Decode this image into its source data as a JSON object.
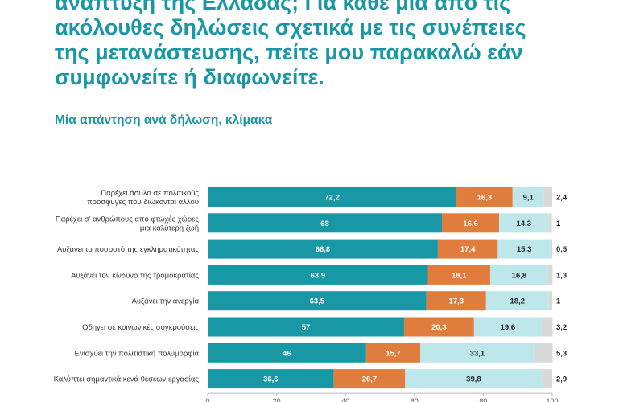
{
  "title_lines": [
    "ανάπτυξη της Ελλάδας; Για κάθε μία από τις",
    "ακόλουθες δηλώσεις σχετικά με τις συνέπειες",
    "της μετανάστευσης, πείτε μου παρακαλώ εάν",
    "συμφωνείτε ή διαφωνείτε."
  ],
  "subtitle": "Μία απάντηση ανά δήλωση, κλίμακα",
  "colors": {
    "title": "#1a97a4",
    "series": [
      "#1798a4",
      "#e07d3c",
      "#bde7eb",
      "#d9d9d9"
    ],
    "label_text": [
      "#ffffff",
      "#ffffff",
      "#222222",
      "#222222"
    ]
  },
  "chart_data": {
    "type": "bar",
    "orientation": "horizontal",
    "stacked": true,
    "categories": [
      [
        "Παρέχει άσυλο σε πολιτικούς",
        "πρόσφυγες που διώκονται αλλού"
      ],
      [
        "Παρέχει σ’ ανθρώπους από φτωχές χώρες",
        "μια καλύτερη ζωή"
      ],
      [
        "Αυξάνει το ποσοστό της εγκληματικότητας"
      ],
      [
        "Αυξάνει τον κίνδυνο της τρομοκρατίας"
      ],
      [
        "Αυξάνει την ανεργία"
      ],
      [
        "Οδηγεί σε κοινωνικές συγκρούσεις"
      ],
      [
        "Ενισχύει την πολιτιστική πολυμορφία"
      ],
      [
        "Καλύπτει σημαντικά κενά θέσεων εργασίας"
      ]
    ],
    "series": [
      {
        "values": [
          72.2,
          68,
          66.8,
          63.9,
          63.5,
          57,
          46,
          36.6
        ]
      },
      {
        "values": [
          16.3,
          16.6,
          17.4,
          18.1,
          17.3,
          20.3,
          15.7,
          20.7
        ]
      },
      {
        "values": [
          9.1,
          14.3,
          15.3,
          16.8,
          18.2,
          19.6,
          33.1,
          39.8
        ]
      },
      {
        "values": [
          2.4,
          1,
          0.5,
          1.3,
          1,
          3.2,
          5.3,
          2.9
        ]
      }
    ],
    "value_labels": [
      [
        "72,2",
        "16,3",
        "9,1",
        "2,4"
      ],
      [
        "68",
        "16,6",
        "14,3",
        "1"
      ],
      [
        "66,8",
        "17,4",
        "15,3",
        "0,5"
      ],
      [
        "63,9",
        "18,1",
        "16,8",
        "1,3"
      ],
      [
        "63,5",
        "17,3",
        "18,2",
        "1"
      ],
      [
        "57",
        "20,3",
        "19,6",
        "3,2"
      ],
      [
        "46",
        "15,7",
        "33,1",
        "5,3"
      ],
      [
        "36,6",
        "20,7",
        "39,8",
        "2,9"
      ]
    ],
    "xlim": [
      0,
      100
    ],
    "xticks": [
      "0",
      "20",
      "40",
      "60",
      "80",
      "100"
    ],
    "xtick_values": [
      0,
      20,
      40,
      60,
      80,
      100
    ],
    "grid": false,
    "legend": "none"
  }
}
